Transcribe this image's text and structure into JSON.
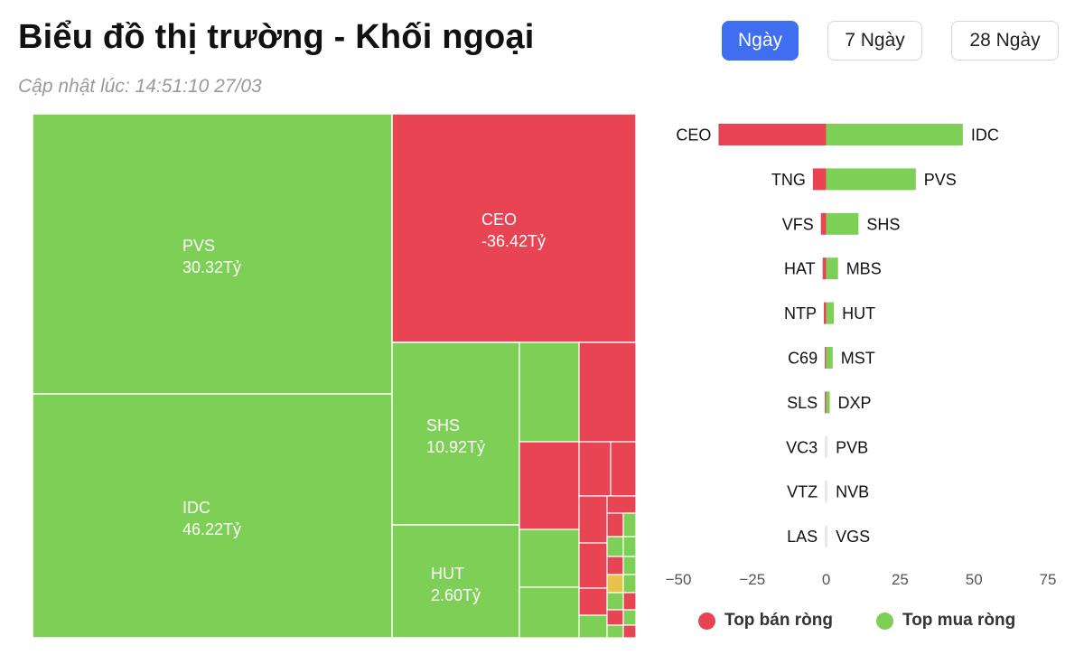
{
  "header": {
    "title": "Biểu đồ thị trường - Khối ngoại",
    "updated": "Cập nhật lúc: 14:51:10 27/03"
  },
  "periods": [
    "Ngày",
    "7 Ngày",
    "28 Ngày"
  ],
  "selected_period": "Ngày",
  "colors": {
    "buy": "#7ecf55",
    "sell": "#e84454",
    "neutral": "#e8c34a",
    "accent": "#3f6ff0"
  },
  "legend": {
    "sell": "Top bán ròng",
    "buy": "Top mua ròng"
  },
  "chart_data": [
    {
      "type": "treemap",
      "unit": "Tỷ",
      "labeled_tiles": [
        {
          "ticker": "PVS",
          "value": "30.32Tỷ"
        },
        {
          "ticker": "IDC",
          "value": "46.22Tỷ"
        },
        {
          "ticker": "CEO",
          "value": "-36.42Tỷ"
        },
        {
          "ticker": "SHS",
          "value": "10.92Tỷ"
        },
        {
          "ticker": "HUT",
          "value": "2.60Tỷ"
        }
      ]
    },
    {
      "type": "bar",
      "orientation": "horizontal",
      "xlim": [
        -50,
        75
      ],
      "xticks": [
        -50,
        -25,
        0,
        25,
        50,
        75
      ],
      "rows": [
        {
          "sell": "CEO",
          "sell_value": -36.42,
          "buy": "IDC",
          "buy_value": 46.22
        },
        {
          "sell": "TNG",
          "sell_value": -4.5,
          "buy": "PVS",
          "buy_value": 30.32
        },
        {
          "sell": "VFS",
          "sell_value": -1.8,
          "buy": "SHS",
          "buy_value": 10.92
        },
        {
          "sell": "HAT",
          "sell_value": -1.2,
          "buy": "MBS",
          "buy_value": 4.0
        },
        {
          "sell": "NTP",
          "sell_value": -0.8,
          "buy": "HUT",
          "buy_value": 2.6
        },
        {
          "sell": "C69",
          "sell_value": -0.3,
          "buy": "MST",
          "buy_value": 2.2
        },
        {
          "sell": "SLS",
          "sell_value": -0.2,
          "buy": "DXP",
          "buy_value": 1.2
        },
        {
          "sell": "VC3",
          "sell_value": -0.1,
          "buy": "PVB",
          "buy_value": 0.4
        },
        {
          "sell": "VTZ",
          "sell_value": -0.1,
          "buy": "NVB",
          "buy_value": 0.3
        },
        {
          "sell": "LAS",
          "sell_value": -0.05,
          "buy": "VGS",
          "buy_value": 0.2
        }
      ]
    }
  ]
}
